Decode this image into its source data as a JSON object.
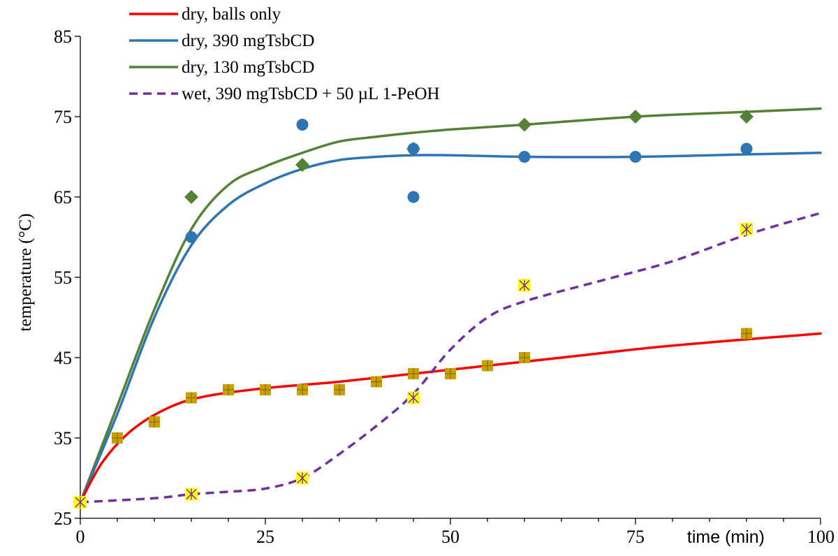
{
  "chart_data": {
    "type": "scatter",
    "title": "",
    "xlabel": "time (min)",
    "ylabel": "temperature (°C)",
    "xlim": [
      0,
      100
    ],
    "ylim": [
      25,
      85
    ],
    "x_ticks": [
      0,
      25,
      50,
      75,
      100
    ],
    "x_tick_labels": [
      "0",
      "25",
      "50",
      "75",
      "100"
    ],
    "y_ticks": [
      25,
      35,
      45,
      55,
      65,
      75,
      85
    ],
    "y_tick_labels": [
      "25",
      "35",
      "45",
      "55",
      "65",
      "75",
      "85"
    ],
    "grid": false,
    "legend_position": "top-left",
    "series": [
      {
        "name": "dry, balls only",
        "color": "#ff0000",
        "line_style": "solid",
        "marker": "square-plus",
        "marker_color": "#c9a000",
        "points": [
          [
            0,
            27
          ],
          [
            5,
            35
          ],
          [
            10,
            37
          ],
          [
            15,
            40
          ],
          [
            20,
            41
          ],
          [
            25,
            41
          ],
          [
            30,
            41
          ],
          [
            35,
            41
          ],
          [
            40,
            42
          ],
          [
            45,
            43
          ],
          [
            50,
            43
          ],
          [
            55,
            44
          ],
          [
            60,
            45
          ],
          [
            90,
            48
          ]
        ],
        "trend": [
          [
            0,
            27
          ],
          [
            3,
            32
          ],
          [
            7,
            36
          ],
          [
            12,
            38.8
          ],
          [
            17,
            40.2
          ],
          [
            25,
            41.2
          ],
          [
            35,
            42
          ],
          [
            45,
            43
          ],
          [
            55,
            44
          ],
          [
            65,
            45
          ],
          [
            80,
            46.5
          ],
          [
            100,
            48
          ]
        ]
      },
      {
        "name": "dry, 390 mgTsbCD",
        "color": "#2e75b6",
        "line_style": "solid",
        "marker": "circle",
        "marker_color": "#2e75b6",
        "points": [
          [
            0,
            27
          ],
          [
            15,
            60
          ],
          [
            30,
            74
          ],
          [
            45,
            65
          ],
          [
            45,
            71
          ],
          [
            60,
            70
          ],
          [
            75,
            70
          ],
          [
            90,
            71
          ]
        ],
        "trend": [
          [
            0,
            27
          ],
          [
            5,
            38
          ],
          [
            10,
            50
          ],
          [
            15,
            59
          ],
          [
            20,
            64
          ],
          [
            25,
            66.7
          ],
          [
            30,
            68.5
          ],
          [
            35,
            69.6
          ],
          [
            40,
            70
          ],
          [
            45,
            70.2
          ],
          [
            50,
            70.2
          ],
          [
            60,
            70
          ],
          [
            75,
            70
          ],
          [
            90,
            70.3
          ],
          [
            100,
            70.5
          ]
        ]
      },
      {
        "name": "dry, 130 mgTsbCD",
        "color": "#548235",
        "line_style": "solid",
        "marker": "diamond",
        "marker_color": "#548235",
        "points": [
          [
            0,
            27
          ],
          [
            15,
            65
          ],
          [
            30,
            69
          ],
          [
            45,
            71
          ],
          [
            60,
            74
          ],
          [
            75,
            75
          ],
          [
            90,
            75
          ]
        ],
        "trend": [
          [
            0,
            27
          ],
          [
            5,
            39
          ],
          [
            10,
            51
          ],
          [
            15,
            61
          ],
          [
            20,
            66.5
          ],
          [
            25,
            68.8
          ],
          [
            30,
            70.5
          ],
          [
            35,
            71.9
          ],
          [
            40,
            72.5
          ],
          [
            45,
            73
          ],
          [
            50,
            73.4
          ],
          [
            60,
            74
          ],
          [
            75,
            75
          ],
          [
            90,
            75.6
          ],
          [
            100,
            76
          ]
        ]
      },
      {
        "name": "wet, 390 mgTsbCD + 50 µL 1-PeOH",
        "color": "#7030a0",
        "line_style": "dashed",
        "marker": "square-asterisk",
        "marker_color": "#ffff00",
        "points": [
          [
            0,
            27
          ],
          [
            15,
            28
          ],
          [
            30,
            30
          ],
          [
            45,
            40
          ],
          [
            60,
            54
          ],
          [
            90,
            61
          ]
        ],
        "trend": [
          [
            0,
            27
          ],
          [
            10,
            27.5
          ],
          [
            15,
            28
          ],
          [
            20,
            28.3
          ],
          [
            25,
            28.7
          ],
          [
            30,
            30
          ],
          [
            35,
            33
          ],
          [
            40,
            36.5
          ],
          [
            45,
            40.5
          ],
          [
            50,
            46
          ],
          [
            55,
            50
          ],
          [
            60,
            52
          ],
          [
            70,
            54.5
          ],
          [
            80,
            57
          ],
          [
            90,
            60.3
          ],
          [
            100,
            63
          ]
        ]
      }
    ]
  }
}
